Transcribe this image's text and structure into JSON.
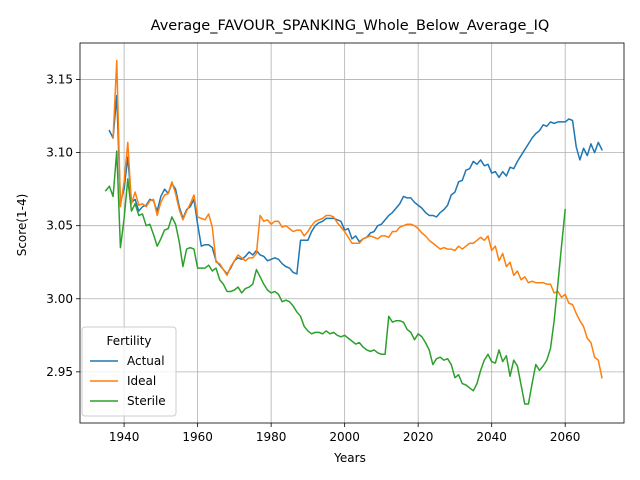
{
  "chart_data": {
    "type": "line",
    "title": "Average_FAVOUR_SPANKING_Whole_Below_Average_IQ",
    "xlabel": "Years",
    "ylabel": "Score(1-4)",
    "xlim": [
      1928,
      2076
    ],
    "ylim": [
      2.915,
      3.175
    ],
    "xticks": [
      1940,
      1960,
      1980,
      2000,
      2020,
      2040,
      2060
    ],
    "yticks": [
      2.95,
      3.0,
      3.05,
      3.1,
      3.15
    ],
    "ytick_labels": [
      "2.95",
      "3.00",
      "3.05",
      "3.10",
      "3.15"
    ],
    "grid": true,
    "legend": {
      "title": "Fertility",
      "placement": "lower-left"
    },
    "series": [
      {
        "name": "Actual",
        "color": "#1f77b4",
        "x": [
          1936,
          1937,
          1938,
          1939,
          1940,
          1941,
          1942,
          1943,
          1944,
          1945,
          1946,
          1947,
          1948,
          1949,
          1950,
          1951,
          1952,
          1953,
          1954,
          1955,
          1956,
          1957,
          1958,
          1959,
          1960,
          1961,
          1962,
          1963,
          1964,
          1965,
          1966,
          1967,
          1968,
          1969,
          1970,
          1971,
          1972,
          1973,
          1974,
          1975,
          1976,
          1977,
          1978,
          1979,
          1980,
          1981,
          1982,
          1983,
          1984,
          1985,
          1986,
          1987,
          1988,
          1989,
          1990,
          1991,
          1992,
          1993,
          1994,
          1995,
          1996,
          1997,
          1998,
          1999,
          2000,
          2001,
          2002,
          2003,
          2004,
          2005,
          2006,
          2007,
          2008,
          2009,
          2010,
          2011,
          2012,
          2013,
          2014,
          2015,
          2016,
          2017,
          2018,
          2019,
          2020,
          2021,
          2022,
          2023,
          2024,
          2025,
          2026,
          2027,
          2028,
          2029,
          2030,
          2031,
          2032,
          2033,
          2034,
          2035,
          2036,
          2037,
          2038,
          2039,
          2040,
          2041,
          2042,
          2043,
          2044,
          2045,
          2046,
          2047,
          2048,
          2049,
          2050,
          2051,
          2052,
          2053,
          2054,
          2055,
          2056,
          2057,
          2058,
          2059,
          2060,
          2061,
          2062,
          2063,
          2064,
          2065,
          2066,
          2067,
          2068,
          2069,
          2070
        ],
        "values": [
          3.115,
          3.11,
          3.139,
          3.066,
          3.075,
          3.097,
          3.066,
          3.068,
          3.06,
          3.063,
          3.064,
          3.068,
          3.067,
          3.06,
          3.07,
          3.075,
          3.072,
          3.079,
          3.075,
          3.063,
          3.055,
          3.061,
          3.063,
          3.068,
          3.051,
          3.036,
          3.037,
          3.037,
          3.035,
          3.026,
          3.023,
          3.02,
          3.017,
          3.021,
          3.026,
          3.028,
          3.027,
          3.029,
          3.032,
          3.03,
          3.033,
          3.03,
          3.029,
          3.026,
          3.027,
          3.028,
          3.027,
          3.024,
          3.022,
          3.021,
          3.018,
          3.017,
          3.04,
          3.04,
          3.04,
          3.046,
          3.05,
          3.052,
          3.053,
          3.055,
          3.055,
          3.055,
          3.054,
          3.053,
          3.047,
          3.048,
          3.041,
          3.043,
          3.039,
          3.041,
          3.042,
          3.045,
          3.046,
          3.05,
          3.051,
          3.054,
          3.057,
          3.059,
          3.062,
          3.065,
          3.07,
          3.069,
          3.069,
          3.066,
          3.064,
          3.062,
          3.059,
          3.057,
          3.057,
          3.056,
          3.059,
          3.061,
          3.064,
          3.071,
          3.073,
          3.08,
          3.081,
          3.088,
          3.089,
          3.094,
          3.092,
          3.095,
          3.091,
          3.092,
          3.086,
          3.087,
          3.083,
          3.087,
          3.084,
          3.09,
          3.089,
          3.094,
          3.098,
          3.102,
          3.106,
          3.11,
          3.113,
          3.115,
          3.119,
          3.118,
          3.121,
          3.12,
          3.121,
          3.121,
          3.121,
          3.123,
          3.122,
          3.104,
          3.095,
          3.103,
          3.098,
          3.106,
          3.1,
          3.107,
          3.102
        ]
      },
      {
        "name": "Ideal",
        "color": "#ff7f0e",
        "x": [
          1937,
          1938,
          1939,
          1940,
          1941,
          1942,
          1943,
          1944,
          1945,
          1946,
          1947,
          1948,
          1949,
          1950,
          1951,
          1952,
          1953,
          1954,
          1955,
          1956,
          1957,
          1958,
          1959,
          1960,
          1961,
          1962,
          1963,
          1964,
          1965,
          1966,
          1967,
          1968,
          1969,
          1970,
          1971,
          1972,
          1973,
          1974,
          1975,
          1976,
          1977,
          1978,
          1979,
          1980,
          1981,
          1982,
          1983,
          1984,
          1985,
          1986,
          1987,
          1988,
          1989,
          1990,
          1991,
          1992,
          1993,
          1994,
          1995,
          1996,
          1997,
          1998,
          1999,
          2000,
          2001,
          2002,
          2003,
          2004,
          2005,
          2006,
          2007,
          2008,
          2009,
          2010,
          2011,
          2012,
          2013,
          2014,
          2015,
          2016,
          2017,
          2018,
          2019,
          2020,
          2021,
          2022,
          2023,
          2024,
          2025,
          2026,
          2027,
          2028,
          2029,
          2030,
          2031,
          2032,
          2033,
          2034,
          2035,
          2036,
          2037,
          2038,
          2039,
          2040,
          2041,
          2042,
          2043,
          2044,
          2045,
          2046,
          2047,
          2048,
          2049,
          2050,
          2051,
          2052,
          2053,
          2054,
          2055,
          2056,
          2057,
          2058,
          2059,
          2060,
          2061,
          2062,
          2063,
          2064,
          2065,
          2066,
          2067,
          2068,
          2069,
          2070
        ],
        "values": [
          3.11,
          3.163,
          3.063,
          3.08,
          3.107,
          3.065,
          3.073,
          3.064,
          3.065,
          3.063,
          3.067,
          3.068,
          3.057,
          3.066,
          3.071,
          3.072,
          3.08,
          3.072,
          3.061,
          3.054,
          3.06,
          3.065,
          3.071,
          3.056,
          3.055,
          3.054,
          3.058,
          3.049,
          3.025,
          3.024,
          3.02,
          3.016,
          3.022,
          3.026,
          3.03,
          3.028,
          3.026,
          3.028,
          3.028,
          3.031,
          3.057,
          3.053,
          3.054,
          3.051,
          3.053,
          3.053,
          3.049,
          3.05,
          3.048,
          3.046,
          3.047,
          3.047,
          3.043,
          3.046,
          3.05,
          3.053,
          3.054,
          3.055,
          3.057,
          3.057,
          3.056,
          3.052,
          3.049,
          3.046,
          3.042,
          3.038,
          3.038,
          3.038,
          3.041,
          3.042,
          3.043,
          3.042,
          3.041,
          3.043,
          3.043,
          3.042,
          3.046,
          3.046,
          3.049,
          3.05,
          3.051,
          3.051,
          3.05,
          3.048,
          3.045,
          3.043,
          3.04,
          3.038,
          3.036,
          3.034,
          3.035,
          3.034,
          3.034,
          3.033,
          3.036,
          3.034,
          3.036,
          3.038,
          3.038,
          3.04,
          3.042,
          3.04,
          3.043,
          3.033,
          3.036,
          3.026,
          3.031,
          3.022,
          3.025,
          3.016,
          3.019,
          3.013,
          3.015,
          3.011,
          3.012,
          3.011,
          3.011,
          3.011,
          3.01,
          3.01,
          3.004,
          3.005,
          3.001,
          3.003,
          2.997,
          2.996,
          2.99,
          2.985,
          2.981,
          2.973,
          2.97,
          2.96,
          2.958,
          2.946
        ]
      },
      {
        "name": "Sterile",
        "color": "#2ca02c",
        "x": [
          1935,
          1936,
          1937,
          1938,
          1939,
          1940,
          1941,
          1942,
          1943,
          1944,
          1945,
          1946,
          1947,
          1948,
          1949,
          1950,
          1951,
          1952,
          1953,
          1954,
          1955,
          1956,
          1957,
          1958,
          1959,
          1960,
          1961,
          1962,
          1963,
          1964,
          1965,
          1966,
          1967,
          1968,
          1969,
          1970,
          1971,
          1972,
          1973,
          1974,
          1975,
          1976,
          1977,
          1978,
          1979,
          1980,
          1981,
          1982,
          1983,
          1984,
          1985,
          1986,
          1987,
          1988,
          1989,
          1990,
          1991,
          1992,
          1993,
          1994,
          1995,
          1996,
          1997,
          1998,
          1999,
          2000,
          2001,
          2002,
          2003,
          2004,
          2005,
          2006,
          2007,
          2008,
          2009,
          2010,
          2011,
          2012,
          2013,
          2014,
          2015,
          2016,
          2017,
          2018,
          2019,
          2020,
          2021,
          2022,
          2023,
          2024,
          2025,
          2026,
          2027,
          2028,
          2029,
          2030,
          2031,
          2032,
          2033,
          2034,
          2035,
          2036,
          2037,
          2038,
          2039,
          2040,
          2041,
          2042,
          2043,
          2044,
          2045,
          2046,
          2047,
          2048,
          2049,
          2050,
          2051,
          2052,
          2053,
          2054,
          2055,
          2056,
          2057,
          2058,
          2059,
          2060
        ],
        "values": [
          3.074,
          3.077,
          3.07,
          3.101,
          3.035,
          3.055,
          3.082,
          3.06,
          3.065,
          3.057,
          3.058,
          3.05,
          3.051,
          3.044,
          3.036,
          3.041,
          3.047,
          3.048,
          3.056,
          3.051,
          3.039,
          3.022,
          3.034,
          3.035,
          3.034,
          3.021,
          3.021,
          3.021,
          3.023,
          3.019,
          3.021,
          3.013,
          3.01,
          3.005,
          3.005,
          3.006,
          3.008,
          3.004,
          3.007,
          3.008,
          3.01,
          3.02,
          3.015,
          3.01,
          3.006,
          3.004,
          3.005,
          3.003,
          2.998,
          2.999,
          2.998,
          2.995,
          2.991,
          2.988,
          2.981,
          2.978,
          2.976,
          2.977,
          2.977,
          2.976,
          2.978,
          2.976,
          2.977,
          2.975,
          2.974,
          2.975,
          2.973,
          2.971,
          2.969,
          2.97,
          2.967,
          2.965,
          2.964,
          2.965,
          2.963,
          2.962,
          2.962,
          2.988,
          2.984,
          2.985,
          2.985,
          2.984,
          2.979,
          2.977,
          2.972,
          2.976,
          2.974,
          2.97,
          2.965,
          2.955,
          2.959,
          2.96,
          2.958,
          2.959,
          2.955,
          2.946,
          2.948,
          2.942,
          2.941,
          2.939,
          2.937,
          2.942,
          2.951,
          2.958,
          2.962,
          2.957,
          2.956,
          2.965,
          2.957,
          2.961,
          2.947,
          2.958,
          2.954,
          2.941,
          2.928,
          2.928,
          2.942,
          2.955,
          2.951,
          2.954,
          2.958,
          2.966,
          2.985,
          3.01,
          3.036,
          3.061
        ]
      }
    ]
  }
}
